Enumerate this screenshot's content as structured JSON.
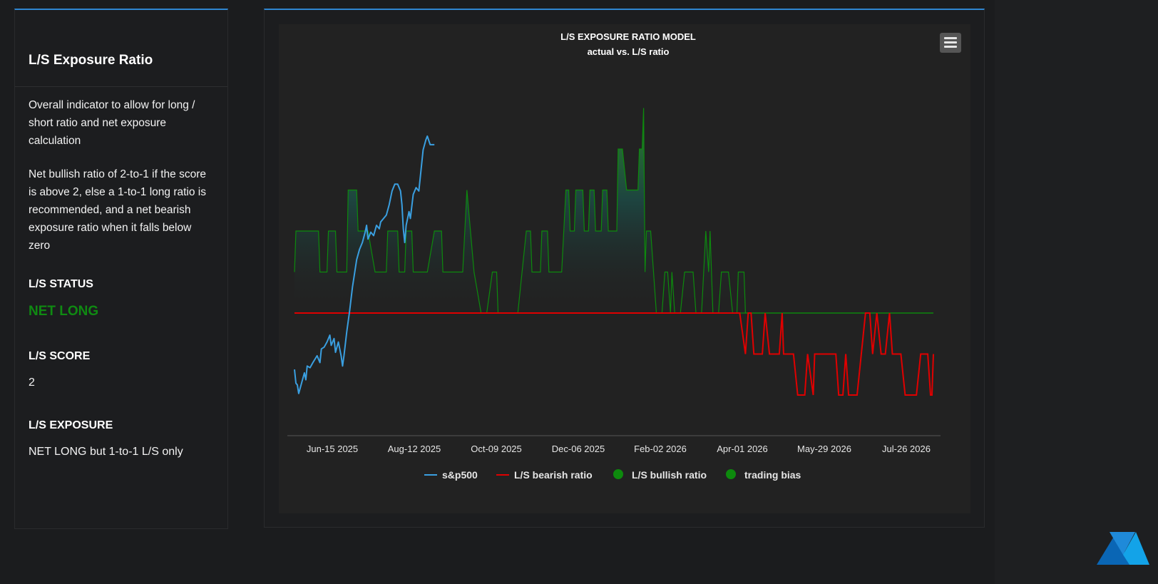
{
  "info": {
    "title": "L/S Exposure Ratio",
    "description1": "Overall indicator to allow for long / short ratio and net exposure calculation",
    "description2": "Net bullish ratio of 2-to-1 if the score is above 2, else a 1-to-1 long ratio is recommended, and a net bearish exposure ratio when it falls below zero",
    "status_label": "L/S STATUS",
    "status_value": "NET LONG",
    "score_label": "L/S SCORE",
    "score_value": "2",
    "exposure_label": "L/S EXPOSURE",
    "exposure_value": "NET LONG but 1-to-1 L/S only"
  },
  "colors": {
    "sp500": "#3a9fe0",
    "bearish": "#e00000",
    "bullish": "#0d8a0d",
    "trading_bias": "#0d8a0d",
    "accent": "#2f86d1"
  },
  "menu_icon": "hamburger-menu-icon",
  "chart_data": {
    "type": "line",
    "title": "L/S EXPOSURE RATIO MODEL",
    "subtitle": "actual vs. L/S ratio",
    "x_tick_labels": [
      "Jun-15 2025",
      "Aug-12 2025",
      "Oct-09 2025",
      "Dec-06 2025",
      "Feb-02 2026",
      "Apr-01 2026",
      "May-29 2026",
      "Jul-26 2026"
    ],
    "legend": [
      "s&p500",
      "L/S bearish ratio",
      "L/S bullish ratio",
      "trading bias"
    ],
    "legend_position": "bottom",
    "grid": false,
    "x_range": [
      "2025-05-18",
      "2026-08-13"
    ],
    "ratio_range": [
      -3,
      5
    ],
    "sp500_range": [
      5600,
      6400
    ],
    "series": [
      {
        "name": "L/S bullish ratio",
        "color": "#0d8a0d",
        "style": "area",
        "points": [
          [
            "2025-05-18",
            1
          ],
          [
            "2025-05-19",
            2
          ],
          [
            "2025-06-04",
            2
          ],
          [
            "2025-06-05",
            1
          ],
          [
            "2025-06-10",
            1
          ],
          [
            "2025-06-11",
            2
          ],
          [
            "2025-06-16",
            2
          ],
          [
            "2025-06-17",
            1
          ],
          [
            "2025-06-24",
            1
          ],
          [
            "2025-06-25",
            3
          ],
          [
            "2025-07-01",
            3
          ],
          [
            "2025-07-02",
            2
          ],
          [
            "2025-07-09",
            2
          ],
          [
            "2025-07-14",
            1
          ],
          [
            "2025-07-22",
            1
          ],
          [
            "2025-07-23",
            2
          ],
          [
            "2025-07-30",
            2
          ],
          [
            "2025-07-31",
            1
          ],
          [
            "2025-08-04",
            1
          ],
          [
            "2025-08-05",
            2
          ],
          [
            "2025-08-09",
            2
          ],
          [
            "2025-08-10",
            1
          ],
          [
            "2025-08-20",
            1
          ],
          [
            "2025-08-25",
            2
          ],
          [
            "2025-08-30",
            2
          ],
          [
            "2025-08-31",
            1
          ],
          [
            "2025-09-14",
            1
          ],
          [
            "2025-09-17",
            3
          ],
          [
            "2025-09-22",
            1
          ],
          [
            "2025-09-27",
            0
          ],
          [
            "2025-10-01",
            0
          ],
          [
            "2025-10-05",
            1
          ],
          [
            "2025-10-08",
            1
          ],
          [
            "2025-10-09",
            0
          ],
          [
            "2025-10-23",
            0
          ],
          [
            "2025-10-29",
            2
          ],
          [
            "2025-11-01",
            2
          ],
          [
            "2025-11-02",
            1
          ],
          [
            "2025-11-08",
            1
          ],
          [
            "2025-11-09",
            2
          ],
          [
            "2025-11-13",
            2
          ],
          [
            "2025-11-14",
            1
          ],
          [
            "2025-11-23",
            1
          ],
          [
            "2025-11-26",
            3
          ],
          [
            "2025-11-28",
            3
          ],
          [
            "2025-11-29",
            2
          ],
          [
            "2025-12-02",
            2
          ],
          [
            "2025-12-03",
            3
          ],
          [
            "2025-12-08",
            3
          ],
          [
            "2025-12-09",
            2
          ],
          [
            "2025-12-12",
            2
          ],
          [
            "2025-12-13",
            3
          ],
          [
            "2025-12-16",
            3
          ],
          [
            "2025-12-17",
            2
          ],
          [
            "2025-12-21",
            2
          ],
          [
            "2025-12-22",
            3
          ],
          [
            "2025-12-25",
            3
          ],
          [
            "2025-12-26",
            2
          ],
          [
            "2026-01-01",
            2
          ],
          [
            "2026-01-02",
            4
          ],
          [
            "2026-01-05",
            4
          ],
          [
            "2026-01-08",
            3
          ],
          [
            "2026-01-16",
            3
          ],
          [
            "2026-01-17",
            4
          ],
          [
            "2026-01-19",
            4
          ],
          [
            "2026-01-20",
            5
          ],
          [
            "2026-01-21",
            1
          ],
          [
            "2026-01-22",
            2
          ],
          [
            "2026-01-25",
            2
          ],
          [
            "2026-01-29",
            0
          ],
          [
            "2026-02-02",
            0
          ],
          [
            "2026-02-04",
            1
          ],
          [
            "2026-02-06",
            1
          ],
          [
            "2026-02-08",
            0
          ],
          [
            "2026-02-09",
            1
          ],
          [
            "2026-02-11",
            0
          ],
          [
            "2026-02-15",
            0
          ],
          [
            "2026-02-18",
            1
          ],
          [
            "2026-02-24",
            1
          ],
          [
            "2026-02-26",
            0
          ],
          [
            "2026-03-02",
            0
          ],
          [
            "2026-03-05",
            2
          ],
          [
            "2026-03-07",
            1
          ],
          [
            "2026-03-08",
            2
          ],
          [
            "2026-03-10",
            0
          ],
          [
            "2026-03-14",
            0
          ],
          [
            "2026-03-16",
            1
          ],
          [
            "2026-03-21",
            1
          ],
          [
            "2026-03-24",
            0
          ],
          [
            "2026-03-27",
            0
          ],
          [
            "2026-03-28",
            1
          ],
          [
            "2026-04-01",
            1
          ],
          [
            "2026-04-02",
            0
          ],
          [
            "2026-04-09",
            0
          ],
          [
            "2026-04-10",
            0
          ],
          [
            "2026-08-13",
            0
          ]
        ]
      },
      {
        "name": "L/S bearish ratio",
        "color": "#e00000",
        "style": "line",
        "points": [
          [
            "2025-05-18",
            0
          ],
          [
            "2026-03-29",
            0
          ],
          [
            "2026-04-02",
            -1
          ],
          [
            "2026-04-04",
            0
          ],
          [
            "2026-04-06",
            0
          ],
          [
            "2026-04-08",
            -1
          ],
          [
            "2026-04-14",
            -1
          ],
          [
            "2026-04-16",
            0
          ],
          [
            "2026-04-19",
            -1
          ],
          [
            "2026-04-26",
            -1
          ],
          [
            "2026-04-28",
            0
          ],
          [
            "2026-04-29",
            -1
          ],
          [
            "2026-05-06",
            -1
          ],
          [
            "2026-05-09",
            -2
          ],
          [
            "2026-05-14",
            -2
          ],
          [
            "2026-05-16",
            -1
          ],
          [
            "2026-05-20",
            -2
          ],
          [
            "2026-05-21",
            -1
          ],
          [
            "2026-06-05",
            -1
          ],
          [
            "2026-06-07",
            -2
          ],
          [
            "2026-06-10",
            -2
          ],
          [
            "2026-06-12",
            -1
          ],
          [
            "2026-06-14",
            -2
          ],
          [
            "2026-06-20",
            -2
          ],
          [
            "2026-06-23",
            -1
          ],
          [
            "2026-06-26",
            0
          ],
          [
            "2026-06-29",
            0
          ],
          [
            "2026-07-01",
            -1
          ],
          [
            "2026-07-04",
            0
          ],
          [
            "2026-07-07",
            -1
          ],
          [
            "2026-07-10",
            -1
          ],
          [
            "2026-07-13",
            0
          ],
          [
            "2026-07-15",
            -1
          ],
          [
            "2026-07-21",
            -1
          ],
          [
            "2026-07-24",
            -2
          ],
          [
            "2026-08-01",
            -2
          ],
          [
            "2026-08-04",
            -1
          ],
          [
            "2026-08-09",
            -1
          ],
          [
            "2026-08-11",
            -2
          ],
          [
            "2026-08-12",
            -2
          ],
          [
            "2026-08-13",
            -1
          ]
        ]
      },
      {
        "name": "s&p500",
        "color": "#3a9fe0",
        "style": "line",
        "points": [
          [
            "2025-05-18",
            5660
          ],
          [
            "2025-05-19",
            5620
          ],
          [
            "2025-05-20",
            5615
          ],
          [
            "2025-05-21",
            5590
          ],
          [
            "2025-05-23",
            5620
          ],
          [
            "2025-05-25",
            5650
          ],
          [
            "2025-05-26",
            5630
          ],
          [
            "2025-05-27",
            5670
          ],
          [
            "2025-05-29",
            5665
          ],
          [
            "2025-05-31",
            5680
          ],
          [
            "2025-06-03",
            5700
          ],
          [
            "2025-06-04",
            5690
          ],
          [
            "2025-06-05",
            5680
          ],
          [
            "2025-06-06",
            5720
          ],
          [
            "2025-06-08",
            5725
          ],
          [
            "2025-06-10",
            5740
          ],
          [
            "2025-06-12",
            5760
          ],
          [
            "2025-06-13",
            5730
          ],
          [
            "2025-06-15",
            5750
          ],
          [
            "2025-06-16",
            5710
          ],
          [
            "2025-06-18",
            5740
          ],
          [
            "2025-06-20",
            5700
          ],
          [
            "2025-06-21",
            5670
          ],
          [
            "2025-06-22",
            5700
          ],
          [
            "2025-06-24",
            5770
          ],
          [
            "2025-06-26",
            5830
          ],
          [
            "2025-06-28",
            5900
          ],
          [
            "2025-07-01",
            5980
          ],
          [
            "2025-07-03",
            6010
          ],
          [
            "2025-07-05",
            6030
          ],
          [
            "2025-07-07",
            6060
          ],
          [
            "2025-07-08",
            6080
          ],
          [
            "2025-07-09",
            6040
          ],
          [
            "2025-07-11",
            6060
          ],
          [
            "2025-07-13",
            6050
          ],
          [
            "2025-07-15",
            6080
          ],
          [
            "2025-07-17",
            6070
          ],
          [
            "2025-07-18",
            6090
          ],
          [
            "2025-07-20",
            6100
          ],
          [
            "2025-07-22",
            6110
          ],
          [
            "2025-07-24",
            6140
          ],
          [
            "2025-07-26",
            6180
          ],
          [
            "2025-07-28",
            6200
          ],
          [
            "2025-07-30",
            6200
          ],
          [
            "2025-08-01",
            6180
          ],
          [
            "2025-08-02",
            6140
          ],
          [
            "2025-08-03",
            6070
          ],
          [
            "2025-08-04",
            6030
          ],
          [
            "2025-08-05",
            6080
          ],
          [
            "2025-08-07",
            6120
          ],
          [
            "2025-08-08",
            6100
          ],
          [
            "2025-08-10",
            6170
          ],
          [
            "2025-08-12",
            6190
          ],
          [
            "2025-08-14",
            6180
          ],
          [
            "2025-08-15",
            6220
          ],
          [
            "2025-08-17",
            6300
          ],
          [
            "2025-08-19",
            6330
          ],
          [
            "2025-08-20",
            6340
          ],
          [
            "2025-08-22",
            6315
          ],
          [
            "2025-08-25",
            6315
          ]
        ]
      },
      {
        "name": "trading bias",
        "color": "#0d8a0d",
        "style": "line",
        "points": [
          [
            "2025-05-18",
            0
          ],
          [
            "2026-08-13",
            0
          ]
        ]
      }
    ]
  }
}
